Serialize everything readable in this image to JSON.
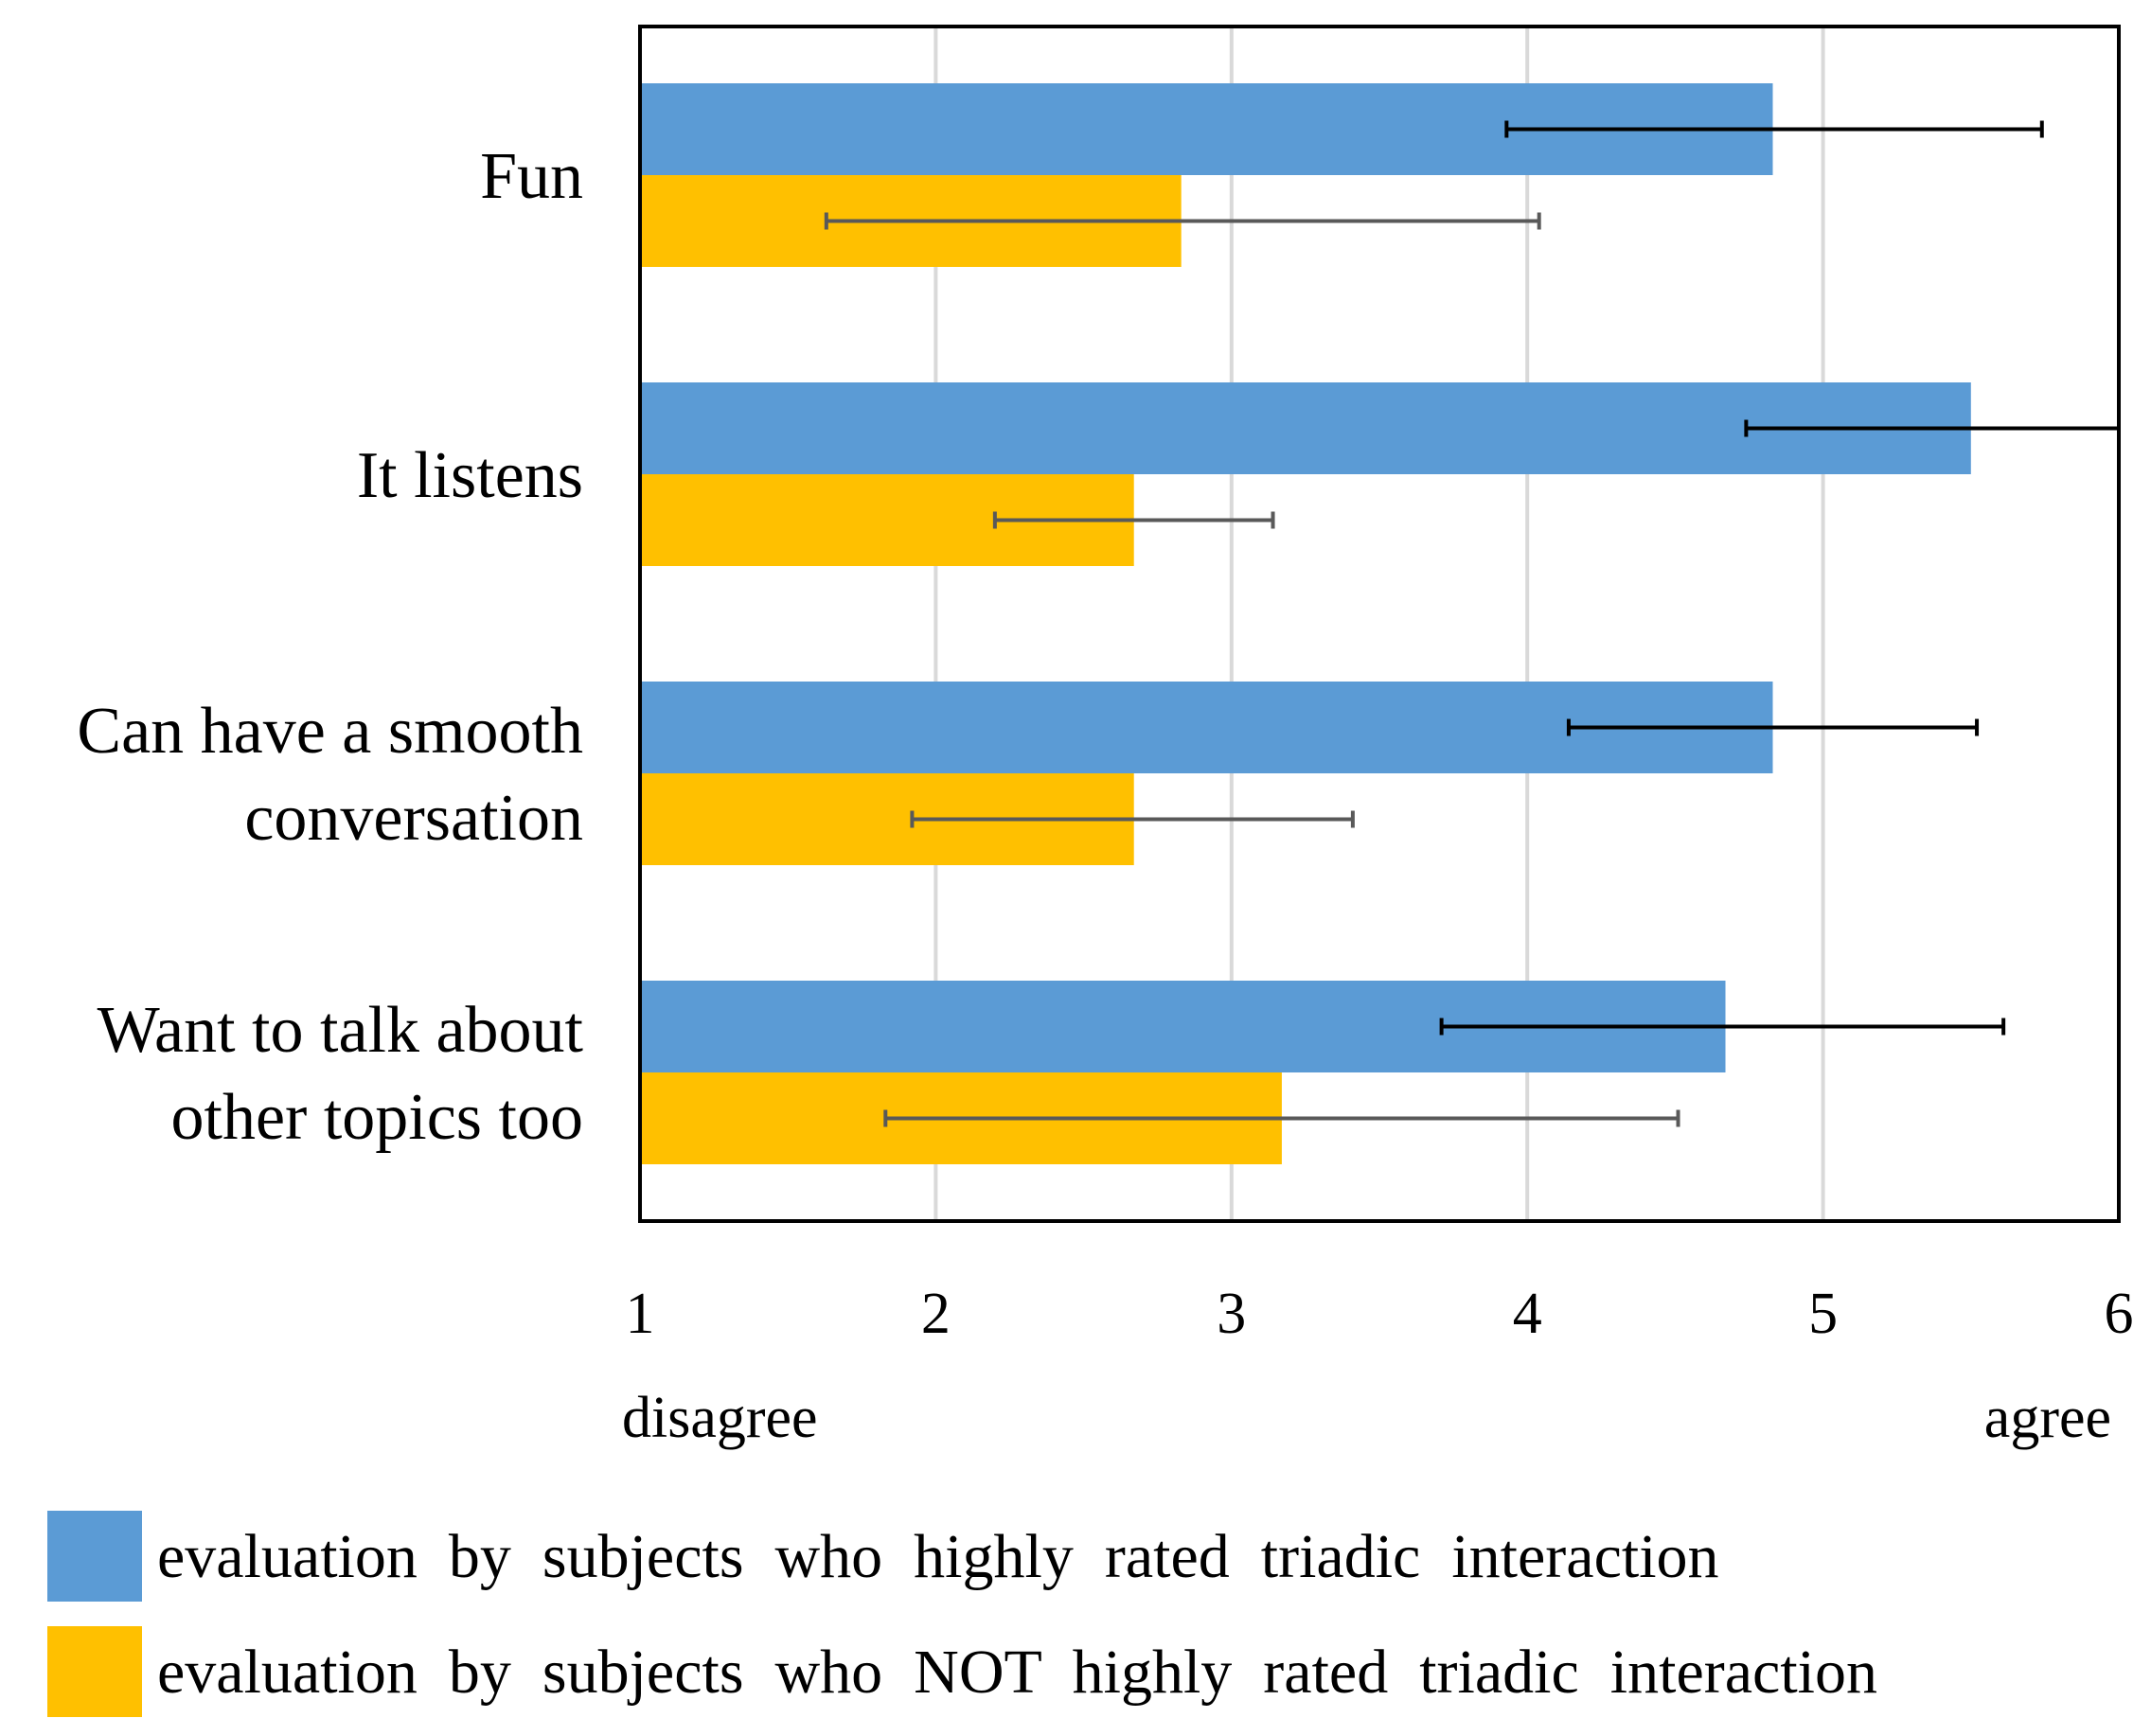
{
  "chart_data": {
    "type": "bar",
    "orientation": "horizontal",
    "categories": [
      [
        "Fun"
      ],
      [
        "It listens"
      ],
      [
        "Can have a smooth",
        "conversation"
      ],
      [
        "Want to talk about",
        "other topics too"
      ]
    ],
    "series": [
      {
        "name": "evaluation  by  subjects  who  highly  rated  triadic  interaction",
        "color": "#5b9bd5",
        "errorbar_color": "#000000",
        "values": [
          4.83,
          5.5,
          4.83,
          4.67
        ],
        "error_low": [
          3.93,
          4.74,
          4.14,
          3.71
        ],
        "error_high": [
          5.74,
          6.0,
          5.52,
          5.61
        ]
      },
      {
        "name": "evaluation  by  subjects  who  NOT  highly  rated  triadic  interaction",
        "color": "#ffc000",
        "errorbar_color": "#595959",
        "values": [
          2.83,
          2.67,
          2.67,
          3.17
        ],
        "error_low": [
          1.63,
          2.2,
          1.92,
          1.83
        ],
        "error_high": [
          4.04,
          3.14,
          3.41,
          4.51
        ]
      }
    ],
    "xlim": [
      1,
      6
    ],
    "x_ticks": [
      "1",
      "2",
      "3",
      "4",
      "5",
      "6"
    ],
    "x_min_label": "disagree",
    "x_max_label": "agree",
    "grid": true,
    "legend_position": "bottom"
  }
}
